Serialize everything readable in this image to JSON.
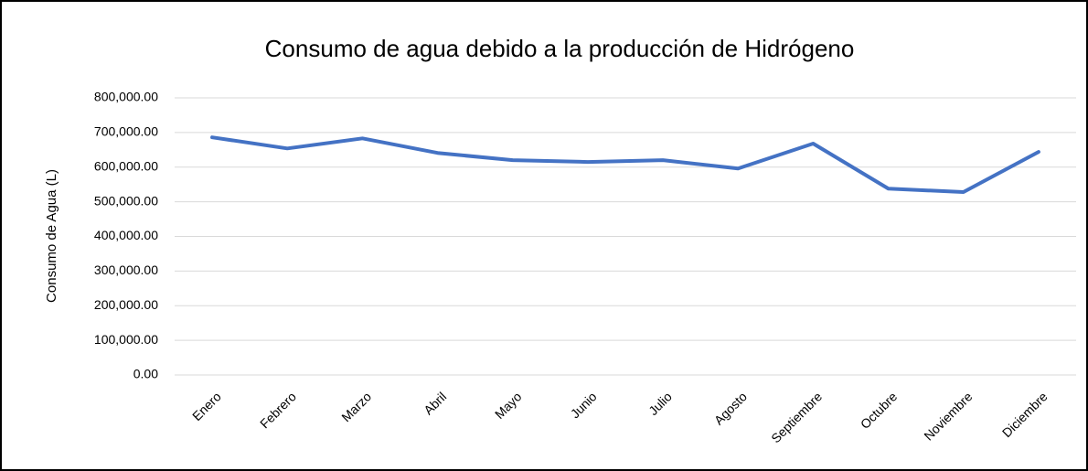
{
  "chart_data": {
    "type": "line",
    "title": "Consumo de agua debido a la producción de Hidrógeno",
    "ylabel": "Consumo de Agua (L)",
    "categories": [
      "Enero",
      "Febrero",
      "Marzo",
      "Abril",
      "Mayo",
      "Junio",
      "Julio",
      "Agosto",
      "Septiembre",
      "Octubre",
      "Noviembre",
      "Diciembre"
    ],
    "series": [
      {
        "name": "Consumo de agua",
        "color": "#4472c4",
        "values": [
          686000,
          654000,
          683000,
          641000,
          620000,
          615000,
          620000,
          596000,
          668000,
          538000,
          528000,
          644000
        ]
      }
    ],
    "ylim": [
      0,
      800000
    ],
    "yticks": [
      {
        "value": 0,
        "label": "0.00"
      },
      {
        "value": 100000,
        "label": "100,000.00"
      },
      {
        "value": 200000,
        "label": "200,000.00"
      },
      {
        "value": 300000,
        "label": "300,000.00"
      },
      {
        "value": 400000,
        "label": "400,000.00"
      },
      {
        "value": 500000,
        "label": "500,000.00"
      },
      {
        "value": 600000,
        "label": "600,000.00"
      },
      {
        "value": 700000,
        "label": "700,000.00"
      },
      {
        "value": 800000,
        "label": "800,000.00"
      }
    ],
    "grid": true
  }
}
